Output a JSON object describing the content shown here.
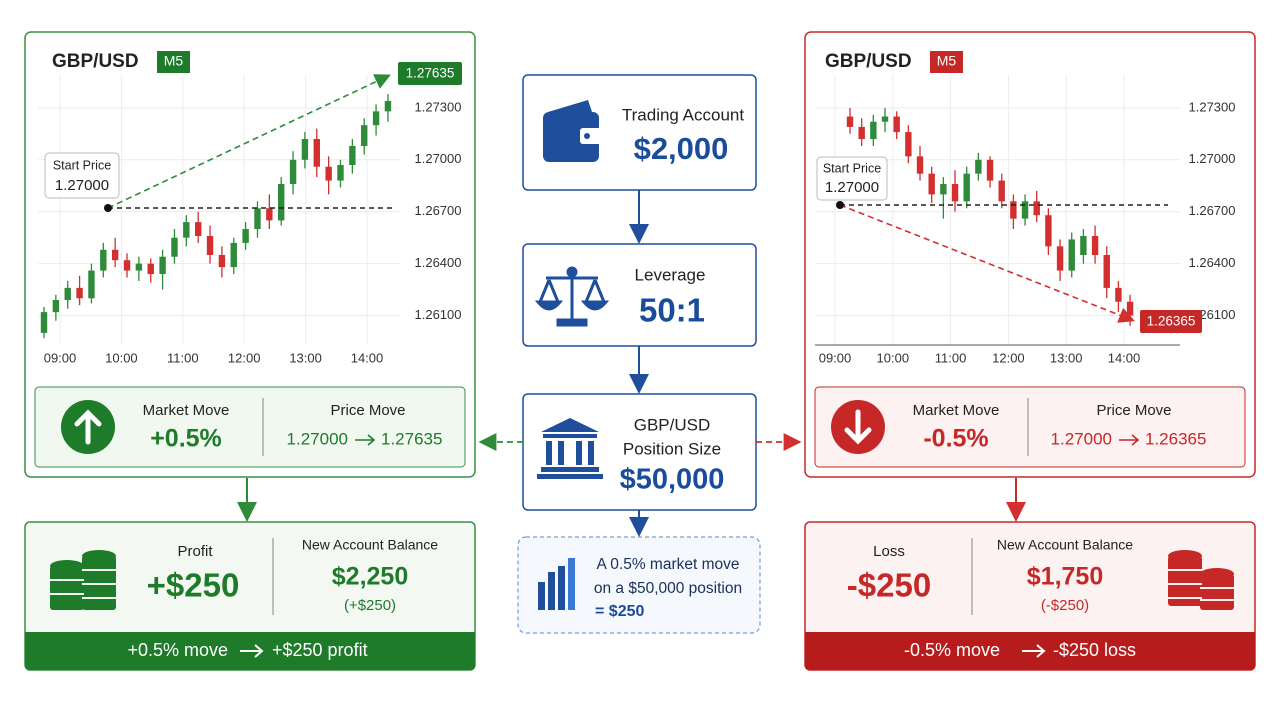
{
  "left": {
    "pair": "GBP/USD",
    "timeframe": "M5",
    "chart": {
      "type": "candlestick",
      "up_color": "#2e8b3a",
      "down_color": "#d32f2f",
      "ylim": [
        1.2593,
        1.2749
      ],
      "yticks": [
        {
          "value": 1.273,
          "label": "1.27300"
        },
        {
          "value": 1.27,
          "label": "1.27000"
        },
        {
          "value": 1.267,
          "label": "1.26700"
        },
        {
          "value": 1.264,
          "label": "1.26400"
        },
        {
          "value": 1.261,
          "label": "1.26100"
        }
      ],
      "xticks": [
        "09:00",
        "10:00",
        "11:00",
        "12:00",
        "13:00",
        "14:00"
      ],
      "candles": [
        [
          1.26,
          1.2615,
          1.2597,
          1.2612
        ],
        [
          1.2612,
          1.2622,
          1.2607,
          1.2619
        ],
        [
          1.2619,
          1.263,
          1.2614,
          1.2626
        ],
        [
          1.2626,
          1.2633,
          1.2616,
          1.262
        ],
        [
          1.262,
          1.264,
          1.2617,
          1.2636
        ],
        [
          1.2636,
          1.2652,
          1.2632,
          1.2648
        ],
        [
          1.2648,
          1.2655,
          1.2638,
          1.2642
        ],
        [
          1.2642,
          1.2646,
          1.2632,
          1.2636
        ],
        [
          1.2636,
          1.2644,
          1.263,
          1.264
        ],
        [
          1.264,
          1.2643,
          1.2629,
          1.2634
        ],
        [
          1.2634,
          1.2648,
          1.2625,
          1.2644
        ],
        [
          1.2644,
          1.266,
          1.264,
          1.2655
        ],
        [
          1.2655,
          1.2668,
          1.265,
          1.2664
        ],
        [
          1.2664,
          1.267,
          1.2652,
          1.2656
        ],
        [
          1.2656,
          1.2662,
          1.264,
          1.2645
        ],
        [
          1.2645,
          1.265,
          1.2632,
          1.2638
        ],
        [
          1.2638,
          1.2655,
          1.2634,
          1.2652
        ],
        [
          1.2652,
          1.2664,
          1.2648,
          1.266
        ],
        [
          1.266,
          1.2676,
          1.2655,
          1.2672
        ],
        [
          1.2672,
          1.268,
          1.266,
          1.2665
        ],
        [
          1.2665,
          1.269,
          1.2662,
          1.2686
        ],
        [
          1.2686,
          1.2705,
          1.268,
          1.27
        ],
        [
          1.27,
          1.2716,
          1.2695,
          1.2712
        ],
        [
          1.2712,
          1.2718,
          1.269,
          1.2696
        ],
        [
          1.2696,
          1.2702,
          1.268,
          1.2688
        ],
        [
          1.2688,
          1.27,
          1.2684,
          1.2697
        ],
        [
          1.2697,
          1.2712,
          1.2692,
          1.2708
        ],
        [
          1.2708,
          1.2724,
          1.2703,
          1.272
        ],
        [
          1.272,
          1.2732,
          1.2714,
          1.2728
        ],
        [
          1.2728,
          1.2738,
          1.2722,
          1.2734
        ]
      ],
      "start_label": "Start Price",
      "start_price": "1.27000",
      "end_price": "1.27635"
    },
    "market_move": {
      "label": "Market Move",
      "value": "+0.5%"
    },
    "price_move": {
      "label": "Price Move",
      "from": "1.27000",
      "to": "1.27635"
    },
    "result": {
      "label": "Profit",
      "value": "+$250",
      "balance_label": "New Account Balance",
      "balance": "$2,250",
      "balance_change": "(+$250)"
    },
    "banner": {
      "move": "+0.5% move",
      "result": "+$250 profit"
    }
  },
  "center": {
    "account": {
      "label": "Trading Account",
      "value": "$2,000"
    },
    "leverage": {
      "label": "Leverage",
      "value": "50:1"
    },
    "position": {
      "label_lines": [
        "GBP/USD",
        "Position Size"
      ],
      "value": "$50,000"
    },
    "note": [
      "A 0.5% market move",
      "on a $50,000 position",
      "= $250"
    ]
  },
  "right": {
    "pair": "GBP/USD",
    "timeframe": "M5",
    "chart": {
      "type": "candlestick",
      "up_color": "#2e8b3a",
      "down_color": "#d32f2f",
      "ylim": [
        1.2593,
        1.2749
      ],
      "yticks": [
        {
          "value": 1.273,
          "label": "1.27300"
        },
        {
          "value": 1.27,
          "label": "1.27000"
        },
        {
          "value": 1.267,
          "label": "1.26700"
        },
        {
          "value": 1.264,
          "label": "1.26400"
        },
        {
          "value": 1.261,
          "label": "1.26100"
        }
      ],
      "xticks": [
        "09:00",
        "10:00",
        "11:00",
        "12:00",
        "13:00",
        "14:00"
      ],
      "candles": [
        [
          1.2725,
          1.273,
          1.2715,
          1.2719
        ],
        [
          1.2719,
          1.2724,
          1.2708,
          1.2712
        ],
        [
          1.2712,
          1.2726,
          1.2708,
          1.2722
        ],
        [
          1.2722,
          1.273,
          1.2716,
          1.2725
        ],
        [
          1.2725,
          1.2728,
          1.2712,
          1.2716
        ],
        [
          1.2716,
          1.272,
          1.2698,
          1.2702
        ],
        [
          1.2702,
          1.2708,
          1.2688,
          1.2692
        ],
        [
          1.2692,
          1.2696,
          1.2675,
          1.268
        ],
        [
          1.268,
          1.269,
          1.2666,
          1.2686
        ],
        [
          1.2686,
          1.2694,
          1.267,
          1.2676
        ],
        [
          1.2676,
          1.2696,
          1.2672,
          1.2692
        ],
        [
          1.2692,
          1.2704,
          1.2688,
          1.27
        ],
        [
          1.27,
          1.2702,
          1.2684,
          1.2688
        ],
        [
          1.2688,
          1.2692,
          1.2672,
          1.2676
        ],
        [
          1.2676,
          1.268,
          1.266,
          1.2666
        ],
        [
          1.2666,
          1.268,
          1.2662,
          1.2676
        ],
        [
          1.2676,
          1.2682,
          1.2664,
          1.2668
        ],
        [
          1.2668,
          1.2672,
          1.2645,
          1.265
        ],
        [
          1.265,
          1.2654,
          1.263,
          1.2636
        ],
        [
          1.2636,
          1.2658,
          1.2632,
          1.2654
        ],
        [
          1.2645,
          1.266,
          1.264,
          1.2656
        ],
        [
          1.2656,
          1.2662,
          1.264,
          1.2645
        ],
        [
          1.2645,
          1.265,
          1.262,
          1.2626
        ],
        [
          1.2626,
          1.263,
          1.2612,
          1.2618
        ],
        [
          1.2618,
          1.2622,
          1.2604,
          1.261
        ]
      ],
      "start_label": "Start Price",
      "start_price": "1.27000",
      "end_price": "1.26365"
    },
    "market_move": {
      "label": "Market Move",
      "value": "-0.5%"
    },
    "price_move": {
      "label": "Price Move",
      "from": "1.27000",
      "to": "1.26365"
    },
    "result": {
      "label": "Loss",
      "value": "-$250",
      "balance_label": "New Account Balance",
      "balance": "$1,750",
      "balance_change": "(-$250)"
    },
    "banner": {
      "move": "-0.5% move",
      "result": "-$250 loss"
    }
  }
}
